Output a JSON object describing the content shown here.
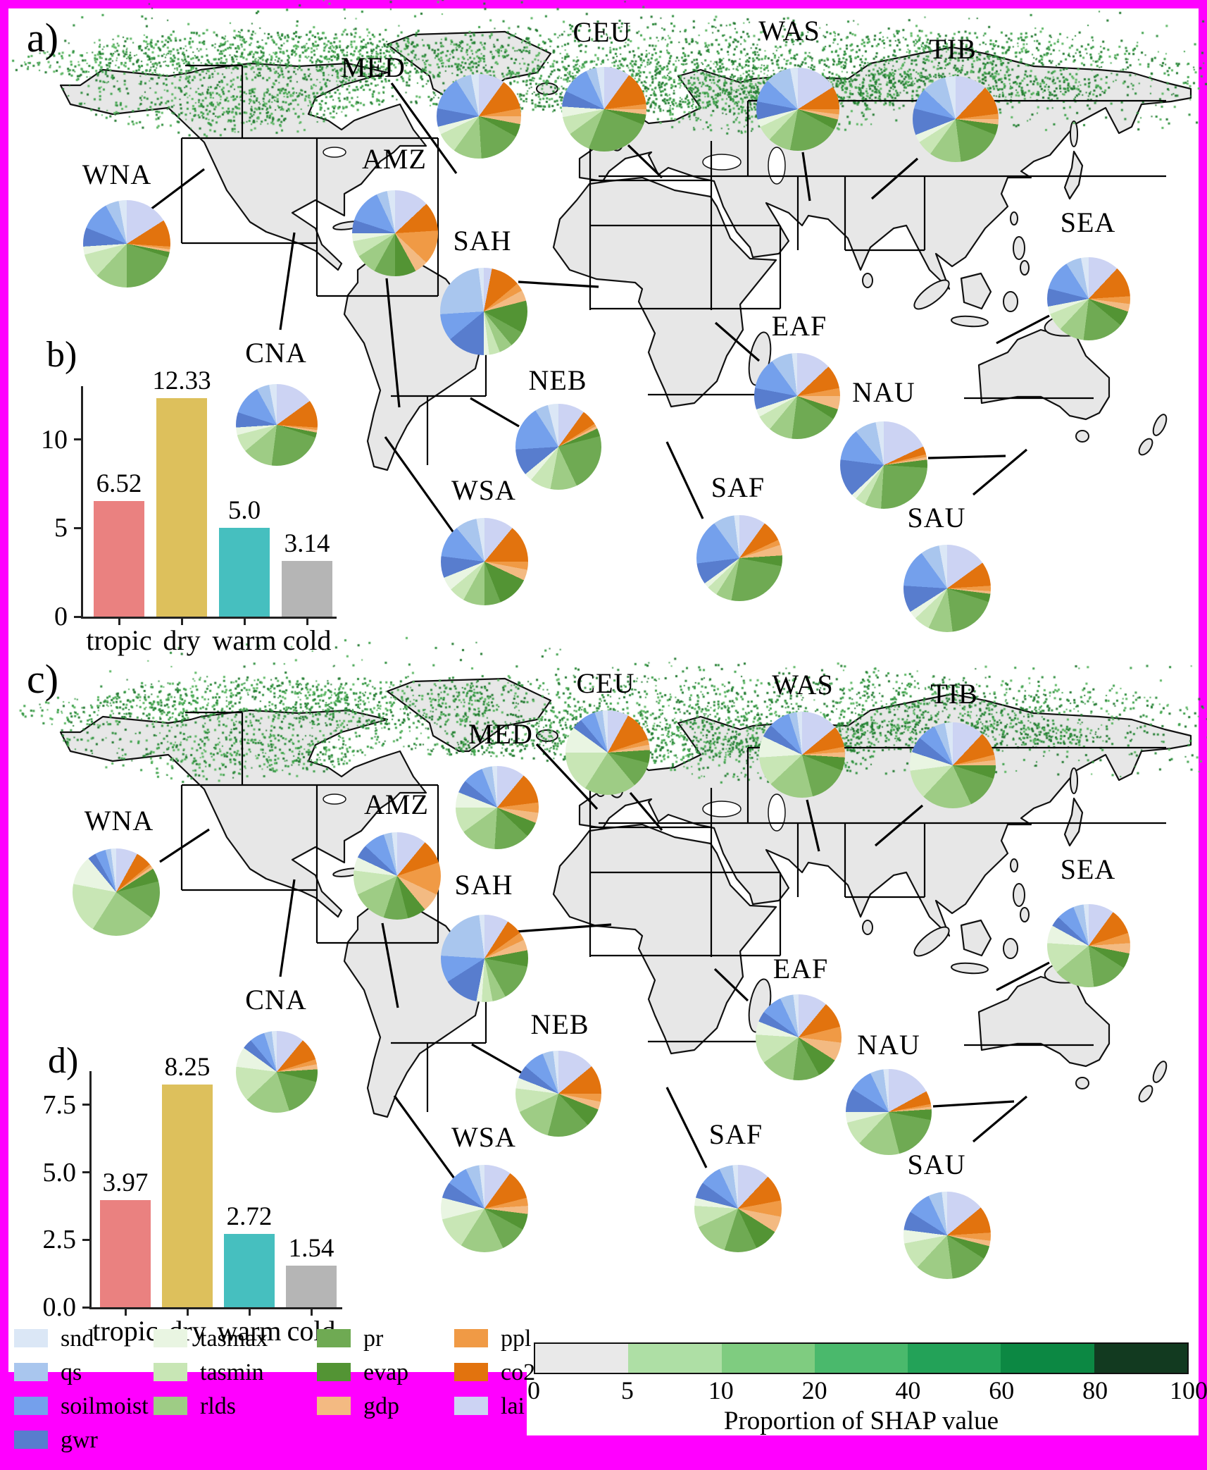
{
  "figure": {
    "panel_labels": {
      "a": "a)",
      "b": "b)",
      "c": "c)",
      "d": "d)"
    }
  },
  "variables": [
    {
      "name": "snd",
      "color": "#dbe7f6"
    },
    {
      "name": "qs",
      "color": "#a9c6ee"
    },
    {
      "name": "soilmoist",
      "color": "#74a0ec"
    },
    {
      "name": "gwr",
      "color": "#587dce"
    },
    {
      "name": "tasmax",
      "color": "#e9f5e2"
    },
    {
      "name": "tasmin",
      "color": "#c8e6b5"
    },
    {
      "name": "rlds",
      "color": "#9ecc85"
    },
    {
      "name": "pr",
      "color": "#6faa53"
    },
    {
      "name": "evap",
      "color": "#539434"
    },
    {
      "name": "gdp",
      "color": "#f3ba82"
    },
    {
      "name": "ppl",
      "color": "#f09a45"
    },
    {
      "name": "co2",
      "color": "#e2730e"
    },
    {
      "name": "lai",
      "color": "#ccd3f3"
    }
  ],
  "regions": [
    "WNA",
    "CNA",
    "AMZ",
    "MED",
    "CEU",
    "WAS",
    "TIB",
    "SEA",
    "SAH",
    "NEB",
    "EAF",
    "NAU",
    "WSA",
    "SAF",
    "SAU"
  ],
  "chart_data": [
    {
      "id": "panel_b",
      "type": "bar",
      "categories": [
        "tropic",
        "dry",
        "warm",
        "cold"
      ],
      "values": [
        6.52,
        12.33,
        5.0,
        3.14
      ],
      "value_labels": [
        "6.52",
        "12.33",
        "5.0",
        "3.14"
      ],
      "bar_colors": [
        "#ea8180",
        "#ddc05c",
        "#46bfbf",
        "#b5b5b5"
      ],
      "yticks": [
        0,
        5,
        10
      ],
      "ytick_labels": [
        "0",
        "5",
        "10"
      ],
      "ylim": [
        0,
        13.5
      ],
      "title": "",
      "xlabel": "",
      "ylabel": ""
    },
    {
      "id": "panel_d",
      "type": "bar",
      "categories": [
        "tropic",
        "dry",
        "warm",
        "cold"
      ],
      "values": [
        3.97,
        8.25,
        2.72,
        1.54
      ],
      "value_labels": [
        "3.97",
        "8.25",
        "2.72",
        "1.54"
      ],
      "bar_colors": [
        "#ea8180",
        "#ddc05c",
        "#46bfbf",
        "#b5b5b5"
      ],
      "yticks": [
        0,
        2.5,
        5,
        7.5
      ],
      "ytick_labels": [
        "0.0",
        "2.5",
        "5.0",
        "7.5"
      ],
      "ylim": [
        0,
        9
      ],
      "title": "",
      "xlabel": "",
      "ylabel": ""
    },
    {
      "id": "pies_panel_a",
      "type": "pie",
      "unit": "%",
      "slice_order": [
        "snd",
        "qs",
        "soilmoist",
        "gwr",
        "tasmax",
        "tasmin",
        "rlds",
        "pr",
        "evap",
        "gdp",
        "ppl",
        "co2",
        "lai"
      ],
      "pies": {
        "WNA": [
          3,
          5,
          11,
          7,
          3,
          9,
          12,
          20,
          2,
          1,
          1,
          10,
          16
        ],
        "CNA": [
          3,
          5,
          12,
          6,
          3,
          7,
          12,
          22,
          2,
          1,
          1,
          11,
          15
        ],
        "AMZ": [
          3,
          4,
          13,
          5,
          3,
          6,
          8,
          8,
          8,
          5,
          13,
          11,
          13
        ],
        "MED": [
          3,
          6,
          13,
          7,
          3,
          8,
          11,
          16,
          5,
          3,
          3,
          12,
          10
        ],
        "CEU": [
          3,
          4,
          11,
          6,
          4,
          7,
          9,
          25,
          4,
          2,
          2,
          13,
          10
        ],
        "WAS": [
          3,
          10,
          9,
          7,
          3,
          6,
          9,
          20,
          4,
          2,
          2,
          9,
          16
        ],
        "TIB": [
          4,
          9,
          8,
          10,
          3,
          6,
          12,
          17,
          4,
          2,
          2,
          11,
          12
        ],
        "SEA": [
          3,
          6,
          12,
          7,
          3,
          7,
          10,
          16,
          6,
          3,
          3,
          12,
          12
        ],
        "SAH": [
          2,
          24,
          10,
          14,
          2,
          4,
          5,
          6,
          12,
          4,
          3,
          11,
          3
        ],
        "NEB": [
          4,
          5,
          17,
          10,
          3,
          8,
          10,
          22,
          3,
          1,
          1,
          6,
          10
        ],
        "EAF": [
          2,
          8,
          12,
          8,
          3,
          6,
          9,
          18,
          4,
          5,
          3,
          9,
          13
        ],
        "NAU": [
          3,
          8,
          12,
          14,
          2,
          4,
          6,
          25,
          3,
          1,
          1,
          3,
          18
        ],
        "WSA": [
          3,
          8,
          12,
          8,
          5,
          6,
          8,
          6,
          12,
          4,
          3,
          14,
          11
        ],
        "SAF": [
          2,
          8,
          17,
          8,
          2,
          4,
          6,
          25,
          4,
          4,
          2,
          8,
          10
        ],
        "SAU": [
          3,
          7,
          14,
          10,
          3,
          6,
          9,
          18,
          3,
          1,
          2,
          9,
          15
        ]
      }
    },
    {
      "id": "pies_panel_c",
      "type": "pie",
      "unit": "%",
      "slice_order": [
        "snd",
        "qs",
        "soilmoist",
        "gwr",
        "tasmax",
        "tasmin",
        "rlds",
        "pr",
        "evap",
        "gdp",
        "ppl",
        "co2",
        "lai"
      ],
      "pies": {
        "WNA": [
          2,
          2,
          4,
          3,
          11,
          19,
          24,
          14,
          5,
          1,
          1,
          6,
          8
        ],
        "CNA": [
          2,
          3,
          6,
          4,
          8,
          14,
          18,
          16,
          5,
          2,
          2,
          9,
          11
        ],
        "AMZ": [
          2,
          3,
          8,
          5,
          5,
          9,
          13,
          9,
          7,
          7,
          12,
          9,
          11
        ],
        "MED": [
          2,
          4,
          8,
          5,
          6,
          10,
          14,
          14,
          6,
          4,
          4,
          12,
          11
        ],
        "CEU": [
          2,
          3,
          6,
          4,
          10,
          16,
          20,
          10,
          5,
          2,
          2,
          12,
          8
        ],
        "WAS": [
          2,
          3,
          8,
          5,
          8,
          11,
          17,
          15,
          5,
          2,
          2,
          8,
          14
        ],
        "TIB": [
          3,
          4,
          7,
          6,
          7,
          11,
          19,
          13,
          5,
          2,
          2,
          9,
          12
        ],
        "SEA": [
          2,
          4,
          7,
          4,
          7,
          12,
          16,
          14,
          6,
          4,
          4,
          10,
          10
        ],
        "SAH": [
          2,
          22,
          10,
          13,
          2,
          4,
          5,
          14,
          6,
          4,
          3,
          6,
          9
        ],
        "NEB": [
          2,
          4,
          8,
          5,
          4,
          9,
          14,
          16,
          7,
          3,
          3,
          11,
          14
        ],
        "EAF": [
          2,
          5,
          8,
          4,
          5,
          11,
          13,
          10,
          8,
          7,
          6,
          10,
          11
        ],
        "NAU": [
          2,
          5,
          9,
          9,
          4,
          9,
          16,
          18,
          4,
          1,
          1,
          5,
          17
        ],
        "WSA": [
          2,
          5,
          8,
          6,
          8,
          12,
          16,
          10,
          6,
          3,
          3,
          11,
          10
        ],
        "SAF": [
          2,
          5,
          8,
          6,
          3,
          8,
          13,
          12,
          9,
          6,
          6,
          10,
          12
        ],
        "SAU": [
          2,
          5,
          9,
          7,
          5,
          10,
          14,
          14,
          5,
          2,
          3,
          10,
          14
        ]
      }
    }
  ],
  "legend": {
    "columns": [
      [
        "snd",
        "qs",
        "soilmoist",
        "gwr"
      ],
      [
        "tasmax",
        "tasmin",
        "rlds"
      ],
      [
        "pr",
        "evap",
        "gdp"
      ],
      [
        "ppl",
        "co2",
        "lai"
      ]
    ]
  },
  "colorbar": {
    "label": "Proportion of SHAP value",
    "tick_labels": [
      "0",
      "5",
      "10",
      "20",
      "40",
      "60",
      "80",
      "100"
    ],
    "segment_colors": [
      "#e9e9e9",
      "#aedfa5",
      "#7fcc80",
      "#4ab96c",
      "#23a258",
      "#0c8843",
      "#123a20"
    ]
  },
  "map": {
    "land_color": "#e7e7e7",
    "coast_color": "#111111",
    "dot_colors": [
      "#3fa24c",
      "#2f8f3e",
      "#5cb763",
      "#237a31"
    ],
    "background": "#ffffff"
  },
  "page": {
    "frame_color": "#ff00ff"
  }
}
